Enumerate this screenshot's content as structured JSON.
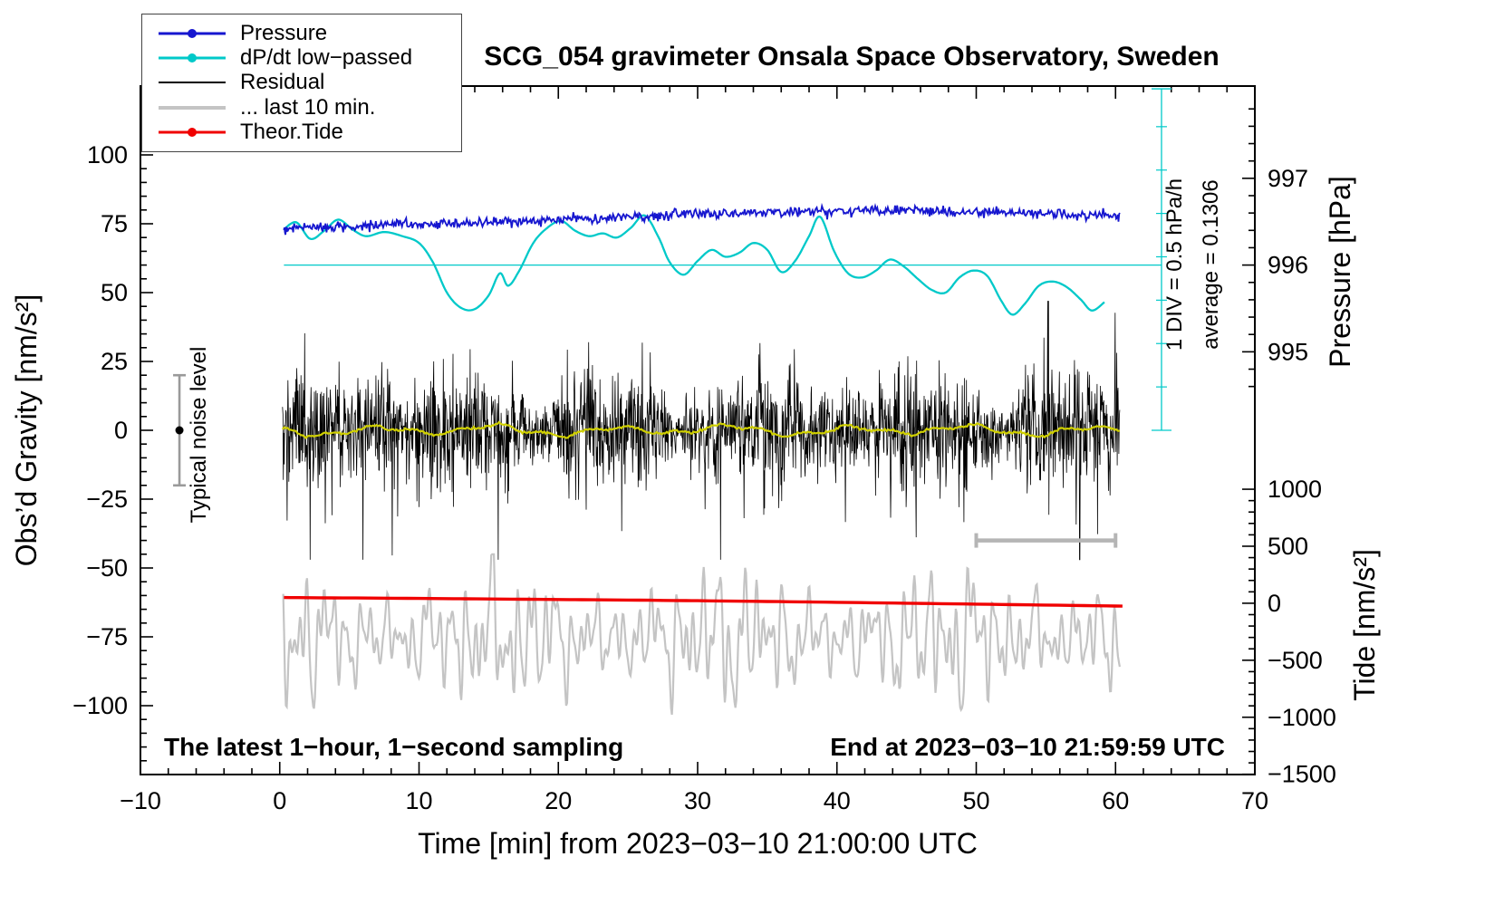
{
  "chart_data": {
    "type": "line",
    "title": "SCG_054 gravimeter Onsala Space Observatory, Sweden",
    "xlabel": "Time [min] from 2023−03−10 21:00:00 UTC",
    "ylabel_left": "Obs’d Gravity [nm/s²]",
    "ylabel_pressure": "Pressure [hPa]",
    "ylabel_tide": "Tide [nm/s²]",
    "x_axis": {
      "min": -10,
      "max": 70,
      "major_ticks": [
        -10,
        0,
        10,
        20,
        30,
        40,
        50,
        60,
        70
      ],
      "minor_step": 2
    },
    "gravity_axis": {
      "min": -125,
      "max": 125,
      "major_ticks": [
        -100,
        -75,
        -50,
        -25,
        0,
        25,
        50,
        75,
        100
      ],
      "minor_step": 5
    },
    "pressure_axis": {
      "major_ticks": [
        995,
        996,
        997
      ],
      "minor_step": 0.2,
      "minor_range": [
        994.6,
        997.8
      ],
      "gravity_at_996": 60,
      "gravity_per_hpa": 31.5
    },
    "tide_axis": {
      "major_ticks": [
        1000,
        500,
        0,
        -500,
        -1000,
        -1500
      ],
      "minor_step": 100,
      "minor_range": [
        -1400,
        1000
      ],
      "gravity_at_0": -62.8,
      "gravity_per_unit": 0.0414
    },
    "legend": [
      {
        "id": "pressure",
        "label": "Pressure",
        "color": "#1616cf",
        "marker": true,
        "thickness": 3
      },
      {
        "id": "dpdt",
        "label": "dP/dt low−passed",
        "color": "#00c9c9",
        "marker": true,
        "thickness": 3
      },
      {
        "id": "residual",
        "label": "Residual",
        "color": "#000000",
        "marker": false,
        "thickness": 2
      },
      {
        "id": "last10",
        "label": "... last 10 min.",
        "color": "#c4c4c4",
        "marker": false,
        "thickness": 4
      },
      {
        "id": "tide",
        "label": "Theor.Tide",
        "color": "#f00000",
        "marker": true,
        "thickness": 3
      }
    ],
    "series": {
      "pressure": {
        "units": "hPa",
        "color": "#1616cf",
        "jitter_hpa": 0.01,
        "x": [
          0.3,
          3,
          6,
          9,
          12,
          15,
          18,
          21,
          24,
          27,
          30,
          33,
          36,
          39,
          42,
          45,
          48,
          51,
          54,
          57,
          60.3
        ],
        "values": [
          996.42,
          996.44,
          996.45,
          996.47,
          996.48,
          996.5,
          996.51,
          996.53,
          996.55,
          996.57,
          996.59,
          996.6,
          996.61,
          996.62,
          996.63,
          996.63,
          996.62,
          996.61,
          996.6,
          996.58,
          996.56
        ]
      },
      "dpdt": {
        "units": "left-axis (nm/s² plot scale)",
        "color": "#00c9c9",
        "baseline_hpa_per_h": 0.1306,
        "div_hpa_per_h": 0.5,
        "x": [
          0.3,
          1.2,
          2.2,
          3.2,
          4.2,
          5.2,
          6.2,
          7.5,
          8.8,
          10,
          11,
          12,
          13,
          14,
          15,
          15.8,
          16.4,
          17.2,
          18.2,
          19.2,
          20.2,
          21.2,
          22.2,
          23.2,
          24.2,
          25.2,
          26.2,
          27.2,
          28,
          29,
          30,
          31,
          32,
          33,
          34,
          35,
          36,
          37,
          38,
          38.8,
          39.8,
          40.8,
          41.8,
          42.8,
          43.8,
          44.8,
          45.8,
          46.8,
          47.8,
          48.8,
          49.8,
          50.8,
          51.8,
          52.6,
          53.5,
          54.5,
          55.5,
          56.5,
          57.5,
          58.3,
          59.2
        ],
        "y": [
          73,
          75.5,
          69.5,
          72.5,
          76.5,
          73,
          70.5,
          72,
          70.5,
          68,
          61,
          50,
          44.5,
          44,
          49,
          57,
          52.5,
          58,
          68,
          73.5,
          76,
          72.5,
          70.5,
          71.5,
          70,
          73.5,
          78,
          70,
          61,
          56.5,
          61.5,
          65.5,
          63,
          64.5,
          68,
          65.5,
          57.5,
          61.5,
          70.5,
          77.5,
          65,
          57,
          55.5,
          58,
          62,
          59.5,
          55,
          51,
          50,
          55.5,
          58,
          56,
          47,
          42,
          46,
          52.5,
          54,
          52,
          47.5,
          43.5,
          46.5
        ]
      },
      "residual": {
        "units": "nm/s²",
        "color": "#000000",
        "x_range": [
          0.2,
          60.3
        ],
        "points": 2000,
        "sigma": 9.5,
        "spike_probability": 0.06,
        "max_abs": 47
      },
      "residual_mean": {
        "units": "nm/s²",
        "color": "#cfcf00",
        "amplitude": 2
      },
      "last10": {
        "units": "tide nm/s²",
        "color": "#c4c4c4",
        "x_range": [
          0.25,
          60.3
        ],
        "center": -300,
        "peak": 430,
        "trough": -1030,
        "components": [
          {
            "period": 0.42,
            "amp": 110
          },
          {
            "period": 0.63,
            "amp": 160
          },
          {
            "period": 0.95,
            "amp": 190
          },
          {
            "period": 1.5,
            "amp": 150
          },
          {
            "period": 2.3,
            "amp": 115
          },
          {
            "period": 3.9,
            "amp": 90
          }
        ]
      },
      "tide": {
        "units": "tide nm/s²",
        "color": "#f00000",
        "x": [
          0.3,
          10,
          20,
          30,
          40,
          50,
          60.5
        ],
        "values": [
          50,
          42,
          33,
          22,
          8,
          -8,
          -25
        ]
      }
    },
    "annotations": {
      "noise_bar": {
        "label": "Typical noise level",
        "x_min": -7.2,
        "center": 0,
        "half_range": 20
      },
      "ruler": {
        "x_min": 63.3,
        "top_gravity": 124,
        "bottom_gravity": 0,
        "baseline_gravity": 60,
        "div_label": "1 DIV = 0.5 hPa/h",
        "avg_label": "average = 0.1306"
      },
      "scale_bar": {
        "x1": 50,
        "x2": 60,
        "gravity": -40
      },
      "bottom_left": "The latest 1−hour, 1−second sampling",
      "bottom_right": "End at 2023−03−10 21:59:59 UTC"
    }
  }
}
